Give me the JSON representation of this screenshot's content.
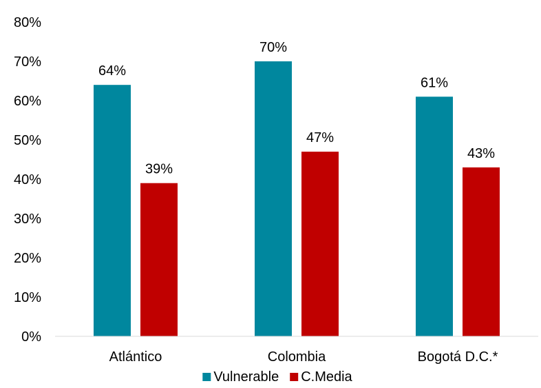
{
  "chart_data": {
    "type": "bar",
    "categories": [
      "Atlántico",
      "Colombia",
      "Bogotá D.C.*"
    ],
    "series": [
      {
        "name": "Vulnerable",
        "color": "#00879E",
        "values": [
          64,
          70,
          61
        ],
        "labels": [
          "64%",
          "70%",
          "61%"
        ]
      },
      {
        "name": "C.Media",
        "color": "#C00000",
        "values": [
          39,
          47,
          43
        ],
        "labels": [
          "39%",
          "47%",
          "43%"
        ]
      }
    ],
    "y_ticks": [
      0,
      10,
      20,
      30,
      40,
      50,
      60,
      70,
      80
    ],
    "y_tick_labels": [
      "0%",
      "10%",
      "20%",
      "30%",
      "40%",
      "50%",
      "60%",
      "70%",
      "80%"
    ],
    "ylim": [
      0,
      80
    ],
    "grid": false,
    "legend_position": "bottom"
  }
}
